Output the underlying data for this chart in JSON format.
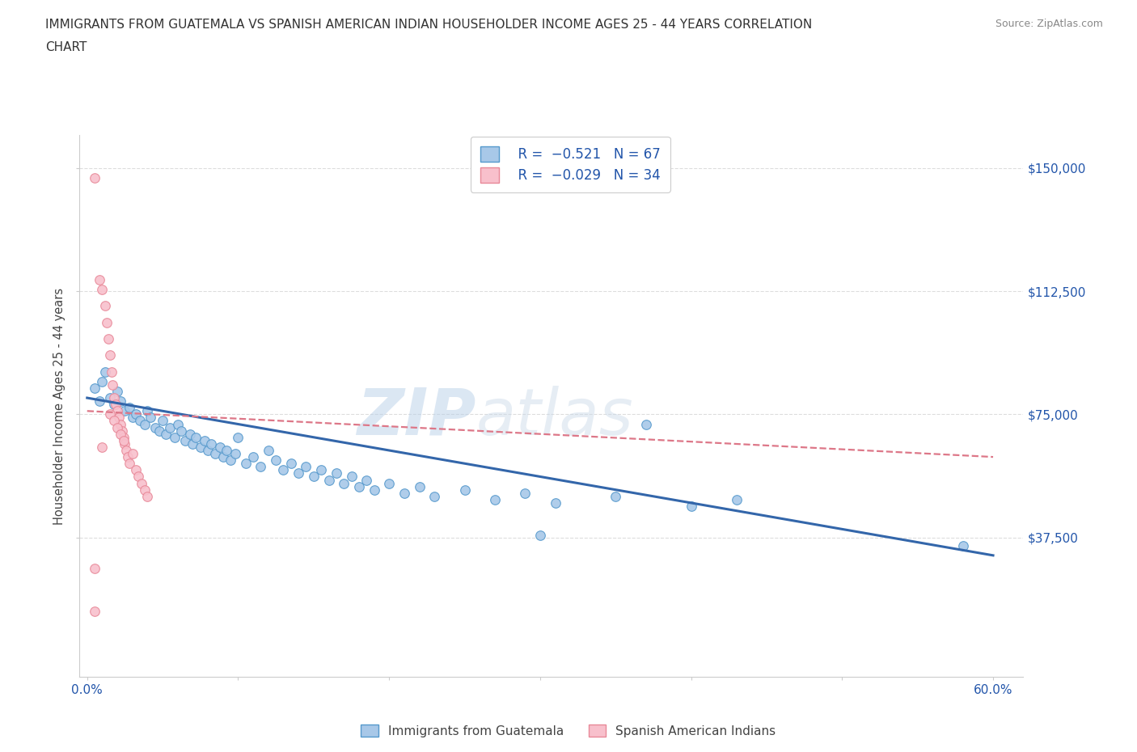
{
  "title_line1": "IMMIGRANTS FROM GUATEMALA VS SPANISH AMERICAN INDIAN HOUSEHOLDER INCOME AGES 25 - 44 YEARS CORRELATION",
  "title_line2": "CHART",
  "source": "Source: ZipAtlas.com",
  "xlabel_ticks_show": [
    "0.0%",
    "60.0%"
  ],
  "xlabel_vals": [
    0.0,
    0.1,
    0.2,
    0.3,
    0.4,
    0.5,
    0.6
  ],
  "ylabel": "Householder Income Ages 25 - 44 years",
  "ylabel_ticks": [
    "$37,500",
    "$75,000",
    "$112,500",
    "$150,000"
  ],
  "ylabel_vals": [
    37500,
    75000,
    112500,
    150000
  ],
  "xlim": [
    -0.005,
    0.62
  ],
  "ylim": [
    -5000,
    160000
  ],
  "color_blue": "#a8c8e8",
  "color_pink": "#f8c0cc",
  "color_edge_blue": "#5599cc",
  "color_edge_pink": "#e88898",
  "color_line_blue": "#3366aa",
  "color_line_pink": "#dd7788",
  "color_text_blue": "#2255aa",
  "watermark_text": "ZIPatlas",
  "blue_scatter": [
    [
      0.005,
      83000
    ],
    [
      0.008,
      79000
    ],
    [
      0.01,
      85000
    ],
    [
      0.012,
      88000
    ],
    [
      0.015,
      80000
    ],
    [
      0.018,
      78000
    ],
    [
      0.02,
      82000
    ],
    [
      0.022,
      79000
    ],
    [
      0.025,
      76000
    ],
    [
      0.028,
      77000
    ],
    [
      0.03,
      74000
    ],
    [
      0.032,
      75000
    ],
    [
      0.035,
      73000
    ],
    [
      0.038,
      72000
    ],
    [
      0.04,
      76000
    ],
    [
      0.042,
      74000
    ],
    [
      0.045,
      71000
    ],
    [
      0.048,
      70000
    ],
    [
      0.05,
      73000
    ],
    [
      0.052,
      69000
    ],
    [
      0.055,
      71000
    ],
    [
      0.058,
      68000
    ],
    [
      0.06,
      72000
    ],
    [
      0.062,
      70000
    ],
    [
      0.065,
      67000
    ],
    [
      0.068,
      69000
    ],
    [
      0.07,
      66000
    ],
    [
      0.072,
      68000
    ],
    [
      0.075,
      65000
    ],
    [
      0.078,
      67000
    ],
    [
      0.08,
      64000
    ],
    [
      0.082,
      66000
    ],
    [
      0.085,
      63000
    ],
    [
      0.088,
      65000
    ],
    [
      0.09,
      62000
    ],
    [
      0.092,
      64000
    ],
    [
      0.095,
      61000
    ],
    [
      0.098,
      63000
    ],
    [
      0.1,
      68000
    ],
    [
      0.105,
      60000
    ],
    [
      0.11,
      62000
    ],
    [
      0.115,
      59000
    ],
    [
      0.12,
      64000
    ],
    [
      0.125,
      61000
    ],
    [
      0.13,
      58000
    ],
    [
      0.135,
      60000
    ],
    [
      0.14,
      57000
    ],
    [
      0.145,
      59000
    ],
    [
      0.15,
      56000
    ],
    [
      0.155,
      58000
    ],
    [
      0.16,
      55000
    ],
    [
      0.165,
      57000
    ],
    [
      0.17,
      54000
    ],
    [
      0.175,
      56000
    ],
    [
      0.18,
      53000
    ],
    [
      0.185,
      55000
    ],
    [
      0.19,
      52000
    ],
    [
      0.2,
      54000
    ],
    [
      0.21,
      51000
    ],
    [
      0.22,
      53000
    ],
    [
      0.23,
      50000
    ],
    [
      0.25,
      52000
    ],
    [
      0.27,
      49000
    ],
    [
      0.29,
      51000
    ],
    [
      0.31,
      48000
    ],
    [
      0.35,
      50000
    ],
    [
      0.37,
      72000
    ],
    [
      0.4,
      47000
    ],
    [
      0.43,
      49000
    ],
    [
      0.3,
      38000
    ],
    [
      0.58,
      35000
    ]
  ],
  "pink_scatter": [
    [
      0.005,
      147000
    ],
    [
      0.008,
      116000
    ],
    [
      0.01,
      113000
    ],
    [
      0.012,
      108000
    ],
    [
      0.013,
      103000
    ],
    [
      0.014,
      98000
    ],
    [
      0.015,
      93000
    ],
    [
      0.016,
      88000
    ],
    [
      0.017,
      84000
    ],
    [
      0.018,
      80000
    ],
    [
      0.019,
      78000
    ],
    [
      0.02,
      76000
    ],
    [
      0.021,
      74000
    ],
    [
      0.022,
      72000
    ],
    [
      0.023,
      70000
    ],
    [
      0.024,
      68000
    ],
    [
      0.025,
      66000
    ],
    [
      0.026,
      64000
    ],
    [
      0.027,
      62000
    ],
    [
      0.028,
      60000
    ],
    [
      0.03,
      63000
    ],
    [
      0.032,
      58000
    ],
    [
      0.034,
      56000
    ],
    [
      0.036,
      54000
    ],
    [
      0.038,
      52000
    ],
    [
      0.04,
      50000
    ],
    [
      0.015,
      75000
    ],
    [
      0.018,
      73000
    ],
    [
      0.02,
      71000
    ],
    [
      0.022,
      69000
    ],
    [
      0.024,
      67000
    ],
    [
      0.01,
      65000
    ],
    [
      0.005,
      28000
    ],
    [
      0.005,
      15000
    ]
  ],
  "blue_trendline": [
    [
      0.0,
      80000
    ],
    [
      0.6,
      32000
    ]
  ],
  "pink_trendline": [
    [
      0.0,
      76000
    ],
    [
      0.6,
      62000
    ]
  ]
}
